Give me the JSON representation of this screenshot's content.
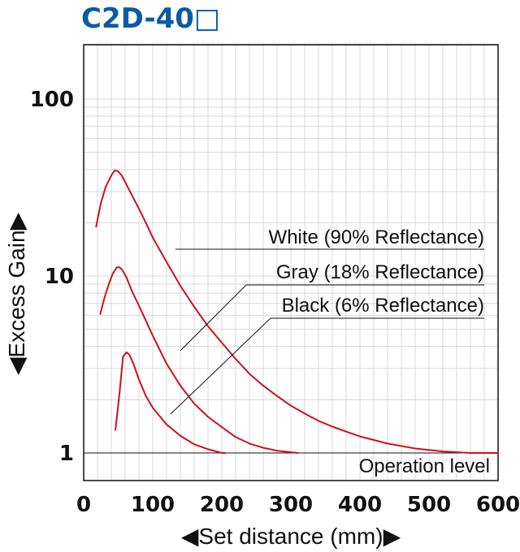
{
  "title": "C2D-40□",
  "chart_data": {
    "type": "line",
    "title": "C2D-40□",
    "xlabel": "◀Set distance (mm)▶",
    "ylabel": "◀Excess Gain▶",
    "xlim": [
      0,
      600
    ],
    "ylim": [
      0.85,
      220
    ],
    "yscale": "log",
    "grid": true,
    "x_ticks": [
      0,
      100,
      200,
      300,
      400,
      500,
      600
    ],
    "x_tick_labels": [
      "0",
      "100",
      "200",
      "300",
      "400",
      "500",
      "600"
    ],
    "y_ticks": [
      1,
      10,
      100
    ],
    "y_tick_labels": [
      "1",
      "10",
      "100"
    ],
    "series": [
      {
        "name": "White (90% Reflectance)",
        "color": "#d0101a",
        "points": [
          [
            18,
            19
          ],
          [
            25,
            26
          ],
          [
            32,
            32
          ],
          [
            40,
            37
          ],
          [
            45,
            39.5
          ],
          [
            50,
            39
          ],
          [
            55,
            37
          ],
          [
            60,
            34
          ],
          [
            70,
            28.5
          ],
          [
            80,
            24
          ],
          [
            90,
            20
          ],
          [
            100,
            16.5
          ],
          [
            120,
            12
          ],
          [
            140,
            8.8
          ],
          [
            160,
            6.7
          ],
          [
            180,
            5.2
          ],
          [
            200,
            4.2
          ],
          [
            220,
            3.4
          ],
          [
            240,
            2.8
          ],
          [
            260,
            2.4
          ],
          [
            280,
            2.1
          ],
          [
            300,
            1.85
          ],
          [
            320,
            1.67
          ],
          [
            340,
            1.52
          ],
          [
            360,
            1.41
          ],
          [
            380,
            1.32
          ],
          [
            400,
            1.24
          ],
          [
            440,
            1.13
          ],
          [
            480,
            1.06
          ],
          [
            520,
            1.02
          ],
          [
            560,
            1.0
          ],
          [
            600,
            1.0
          ]
        ]
      },
      {
        "name": "Gray (18% Reflectance)",
        "color": "#d0101a",
        "points": [
          [
            24,
            6.1
          ],
          [
            30,
            7.5
          ],
          [
            36,
            8.9
          ],
          [
            42,
            10.3
          ],
          [
            48,
            11.2
          ],
          [
            52,
            11.2
          ],
          [
            56,
            10.8
          ],
          [
            62,
            9.8
          ],
          [
            70,
            8.2
          ],
          [
            80,
            6.8
          ],
          [
            90,
            5.6
          ],
          [
            100,
            4.6
          ],
          [
            120,
            3.2
          ],
          [
            140,
            2.4
          ],
          [
            160,
            1.9
          ],
          [
            180,
            1.6
          ],
          [
            200,
            1.4
          ],
          [
            220,
            1.23
          ],
          [
            240,
            1.13
          ],
          [
            260,
            1.07
          ],
          [
            280,
            1.03
          ],
          [
            300,
            1.01
          ],
          [
            310,
            1.0
          ]
        ]
      },
      {
        "name": "Black (6% Reflectance)",
        "color": "#d0101a",
        "points": [
          [
            46,
            1.35
          ],
          [
            52,
            2.2
          ],
          [
            57,
            3.5
          ],
          [
            62,
            3.7
          ],
          [
            66,
            3.6
          ],
          [
            72,
            3.2
          ],
          [
            80,
            2.6
          ],
          [
            90,
            2.1
          ],
          [
            100,
            1.8
          ],
          [
            120,
            1.45
          ],
          [
            140,
            1.25
          ],
          [
            160,
            1.12
          ],
          [
            180,
            1.05
          ],
          [
            200,
            1.0
          ],
          [
            205,
            1.0
          ]
        ]
      }
    ],
    "reference_line": {
      "label": "Operation level",
      "y": 1
    }
  }
}
